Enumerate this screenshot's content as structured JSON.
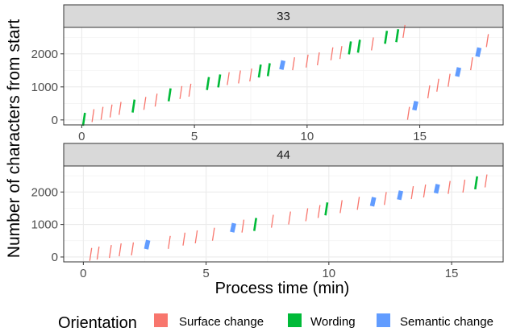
{
  "chart_data": {
    "type": "scatter",
    "ylabel": "Number of characters from start",
    "xlabel": "Process time (min)",
    "legend": {
      "title": "Orientation",
      "position": "bottom",
      "items": [
        {
          "name": "Surface change",
          "color": "#F8766D"
        },
        {
          "name": "Wording",
          "color": "#00BA38"
        },
        {
          "name": "Semantic change",
          "color": "#619CFF"
        }
      ]
    },
    "grid": true,
    "series": [
      {
        "name": "Surface change",
        "color": "#F8766D"
      },
      {
        "name": "Wording",
        "color": "#00BA38"
      },
      {
        "name": "Semantic change",
        "color": "#619CFF"
      }
    ],
    "panels": [
      {
        "strip": "33",
        "xlim": [
          -0.8,
          18.7
        ],
        "ylim": [
          -150,
          2800
        ],
        "x_ticks": [
          0,
          5,
          10,
          15
        ],
        "y_ticks": [
          0,
          1000,
          2000
        ],
        "points": [
          {
            "x": 0.1,
            "y": 20,
            "s": 1
          },
          {
            "x": 0.5,
            "y": 130,
            "s": 0
          },
          {
            "x": 0.9,
            "y": 200,
            "s": 0
          },
          {
            "x": 1.3,
            "y": 270,
            "s": 0
          },
          {
            "x": 1.7,
            "y": 350,
            "s": 0
          },
          {
            "x": 2.3,
            "y": 420,
            "s": 1
          },
          {
            "x": 2.8,
            "y": 500,
            "s": 0
          },
          {
            "x": 3.3,
            "y": 600,
            "s": 0
          },
          {
            "x": 3.9,
            "y": 760,
            "s": 1
          },
          {
            "x": 4.4,
            "y": 830,
            "s": 0
          },
          {
            "x": 4.8,
            "y": 900,
            "s": 0
          },
          {
            "x": 5.6,
            "y": 1100,
            "s": 1
          },
          {
            "x": 6.1,
            "y": 1180,
            "s": 1
          },
          {
            "x": 6.5,
            "y": 1250,
            "s": 0
          },
          {
            "x": 7.0,
            "y": 1300,
            "s": 0
          },
          {
            "x": 7.5,
            "y": 1360,
            "s": 0
          },
          {
            "x": 7.9,
            "y": 1480,
            "s": 1
          },
          {
            "x": 8.3,
            "y": 1520,
            "s": 1
          },
          {
            "x": 8.9,
            "y": 1660,
            "s": 2
          },
          {
            "x": 9.4,
            "y": 1700,
            "s": 0
          },
          {
            "x": 10.0,
            "y": 1780,
            "s": 0
          },
          {
            "x": 10.5,
            "y": 1850,
            "s": 0
          },
          {
            "x": 11.1,
            "y": 2000,
            "s": 0
          },
          {
            "x": 11.5,
            "y": 2040,
            "s": 0
          },
          {
            "x": 11.9,
            "y": 2180,
            "s": 1
          },
          {
            "x": 12.3,
            "y": 2230,
            "s": 1
          },
          {
            "x": 12.9,
            "y": 2300,
            "s": 0
          },
          {
            "x": 13.5,
            "y": 2500,
            "s": 1
          },
          {
            "x": 14.0,
            "y": 2550,
            "s": 1
          },
          {
            "x": 14.3,
            "y": 2680,
            "s": 0
          },
          {
            "x": 14.5,
            "y": 200,
            "s": 0
          },
          {
            "x": 14.8,
            "y": 430,
            "s": 2
          },
          {
            "x": 15.4,
            "y": 850,
            "s": 0
          },
          {
            "x": 15.8,
            "y": 1050,
            "s": 0
          },
          {
            "x": 16.3,
            "y": 1200,
            "s": 0
          },
          {
            "x": 16.7,
            "y": 1450,
            "s": 2
          },
          {
            "x": 17.3,
            "y": 1700,
            "s": 0
          },
          {
            "x": 17.6,
            "y": 2050,
            "s": 2
          },
          {
            "x": 18.0,
            "y": 2400,
            "s": 0
          }
        ]
      },
      {
        "strip": "44",
        "xlim": [
          -0.8,
          17.1
        ],
        "ylim": [
          -150,
          2800
        ],
        "x_ticks": [
          0,
          5,
          10,
          15
        ],
        "y_ticks": [
          0,
          1000,
          2000
        ],
        "points": [
          {
            "x": 0.3,
            "y": 80,
            "s": 0
          },
          {
            "x": 0.6,
            "y": 120,
            "s": 0
          },
          {
            "x": 1.1,
            "y": 170,
            "s": 0
          },
          {
            "x": 1.5,
            "y": 220,
            "s": 0
          },
          {
            "x": 2.0,
            "y": 250,
            "s": 0
          },
          {
            "x": 2.6,
            "y": 380,
            "s": 2
          },
          {
            "x": 3.5,
            "y": 450,
            "s": 0
          },
          {
            "x": 4.1,
            "y": 550,
            "s": 0
          },
          {
            "x": 4.6,
            "y": 620,
            "s": 0
          },
          {
            "x": 5.3,
            "y": 700,
            "s": 0
          },
          {
            "x": 6.1,
            "y": 900,
            "s": 2
          },
          {
            "x": 6.5,
            "y": 950,
            "s": 0
          },
          {
            "x": 7.0,
            "y": 1000,
            "s": 1
          },
          {
            "x": 7.7,
            "y": 1100,
            "s": 0
          },
          {
            "x": 8.4,
            "y": 1200,
            "s": 0
          },
          {
            "x": 9.1,
            "y": 1300,
            "s": 0
          },
          {
            "x": 9.6,
            "y": 1400,
            "s": 0
          },
          {
            "x": 9.9,
            "y": 1480,
            "s": 1
          },
          {
            "x": 10.5,
            "y": 1550,
            "s": 0
          },
          {
            "x": 11.2,
            "y": 1650,
            "s": 0
          },
          {
            "x": 11.8,
            "y": 1700,
            "s": 2
          },
          {
            "x": 12.3,
            "y": 1800,
            "s": 0
          },
          {
            "x": 12.9,
            "y": 1900,
            "s": 2
          },
          {
            "x": 13.4,
            "y": 1980,
            "s": 0
          },
          {
            "x": 13.9,
            "y": 2030,
            "s": 0
          },
          {
            "x": 14.4,
            "y": 2100,
            "s": 2
          },
          {
            "x": 14.9,
            "y": 2140,
            "s": 0
          },
          {
            "x": 15.5,
            "y": 2180,
            "s": 0
          },
          {
            "x": 16.0,
            "y": 2280,
            "s": 1
          },
          {
            "x": 16.4,
            "y": 2340,
            "s": 0
          }
        ]
      }
    ]
  }
}
